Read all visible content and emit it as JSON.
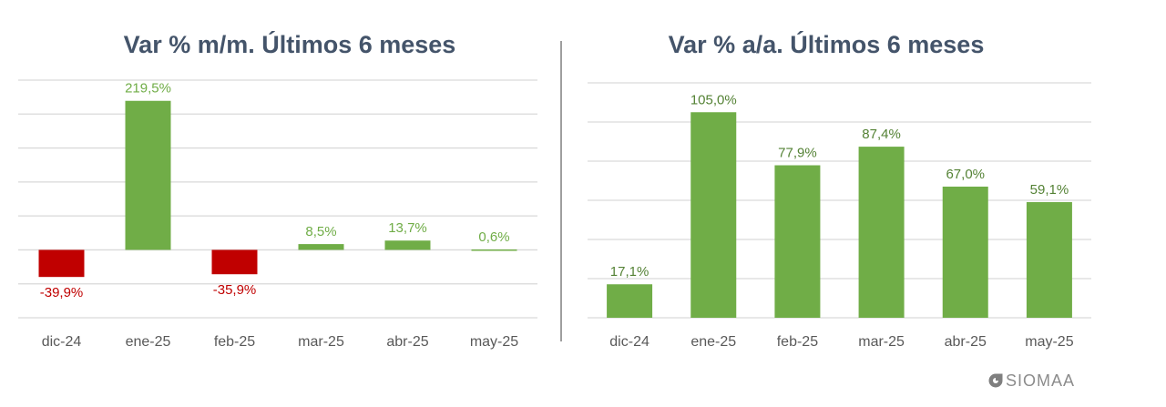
{
  "chart_data": [
    {
      "type": "bar",
      "title": "Var % m/m. Últimos 6 meses",
      "categories": [
        "dic-24",
        "ene-25",
        "feb-25",
        "mar-25",
        "abr-25",
        "may-25"
      ],
      "values": [
        -39.9,
        219.5,
        -35.9,
        8.5,
        13.7,
        0.6
      ],
      "data_labels": [
        "-39,9%",
        "219,5%",
        "-35,9%",
        "8,5%",
        "13,7%",
        "0,6%"
      ],
      "ylim": [
        -100,
        250
      ],
      "grid": true,
      "legend": "none",
      "colors": {
        "positive": "#70ad47",
        "negative": "#c00000",
        "positive_label": "#70ad47",
        "negative_label": "#c00000"
      }
    },
    {
      "type": "bar",
      "title": "Var % a/a. Últimos 6 meses",
      "categories": [
        "dic-24",
        "ene-25",
        "feb-25",
        "mar-25",
        "abr-25",
        "may-25"
      ],
      "values": [
        17.1,
        105.0,
        77.9,
        87.4,
        67.0,
        59.1
      ],
      "data_labels": [
        "17,1%",
        "105,0%",
        "77,9%",
        "87,4%",
        "67,0%",
        "59,1%"
      ],
      "ylim": [
        0,
        120
      ],
      "grid": true,
      "legend": "none",
      "colors": {
        "positive": "#70ad47",
        "negative": "#c00000",
        "positive_label": "#548235",
        "negative_label": "#c00000"
      }
    }
  ],
  "brand": {
    "name": "SIOMAA",
    "icon": "siomaa-logo-icon"
  }
}
